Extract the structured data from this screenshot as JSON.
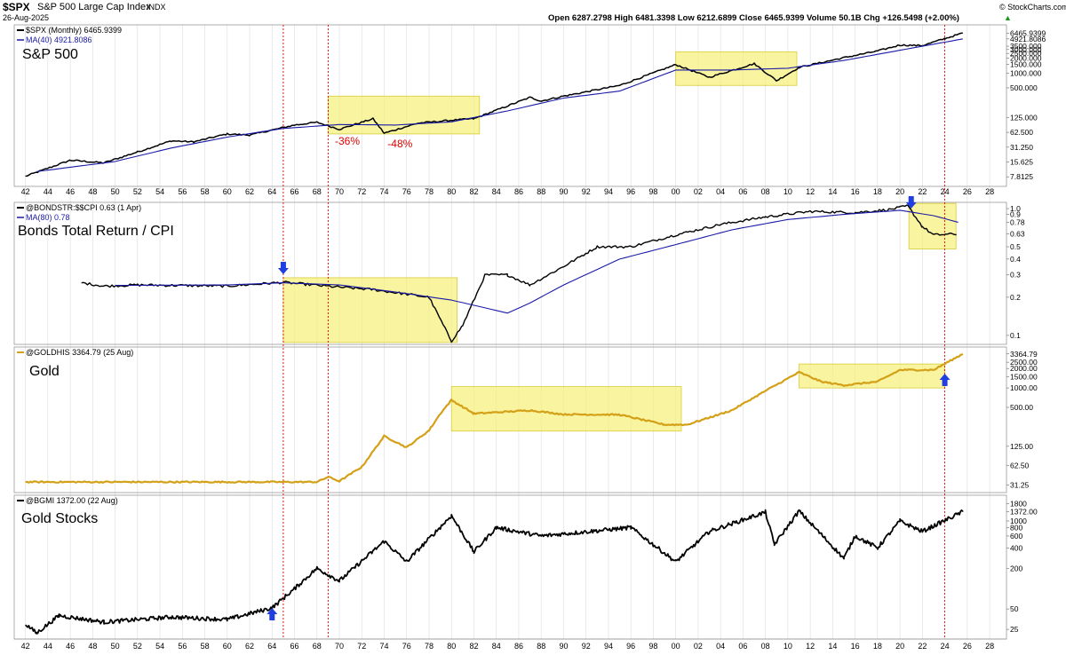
{
  "header": {
    "symbol": "$SPX",
    "name": "S&P 500 Large Cap Index",
    "exchange": "INDX",
    "date": "26-Aug-2025",
    "ohlc": "Open 6287.2798  High 6481.3398  Low 6212.6899  Close 6465.9399  Volume 50.1B  Chg +126.5498 (+2.00%)",
    "ohlc_arrow": "▲",
    "brand": "© StockCharts.com"
  },
  "chart_data": [
    {
      "type": "line",
      "scale": "log",
      "legend": "$SPX (Monthly) 6465.9399",
      "ma_legend": "MA(40) 4921.8086",
      "label": "S&P 500",
      "yticks": [
        "6465.9399",
        "4921.8086",
        "3500.000",
        "3000.000",
        "2500.000",
        "2000.000",
        "1500.000",
        "1000.000",
        "500.000",
        "125.000",
        "62.500",
        "31.250",
        "15.625",
        "7.8125"
      ],
      "annotations": [
        "-36%",
        "-48%"
      ],
      "highlight_ranges": [
        [
          1969.0,
          1982.5
        ],
        [
          2000.0,
          2010.8
        ]
      ],
      "series": [
        {
          "values": [
            [
              1942,
              8
            ],
            [
              1946,
              17
            ],
            [
              1949,
              15
            ],
            [
              1952,
              25
            ],
            [
              1955,
              42
            ],
            [
              1957,
              40
            ],
            [
              1960,
              58
            ],
            [
              1962,
              55
            ],
            [
              1966,
              88
            ],
            [
              1968,
              100
            ],
            [
              1970,
              72
            ],
            [
              1973,
              118
            ],
            [
              1974,
              60
            ],
            [
              1977,
              96
            ],
            [
              1980,
              110
            ],
            [
              1982,
              118
            ],
            [
              1987,
              320
            ],
            [
              1988,
              270
            ],
            [
              1990,
              340
            ],
            [
              1995,
              560
            ],
            [
              2000,
              1480
            ],
            [
              2003,
              820
            ],
            [
              2007,
              1550
            ],
            [
              2009,
              700
            ],
            [
              2011,
              1300
            ],
            [
              2015,
              2050
            ],
            [
              2018,
              2800
            ],
            [
              2020,
              3700
            ],
            [
              2022,
              3600
            ],
            [
              2024,
              5000
            ],
            [
              2025.6,
              6465.94
            ]
          ]
        },
        {
          "values": [
            [
              1943,
              10
            ],
            [
              1950,
              16
            ],
            [
              1955,
              30
            ],
            [
              1960,
              50
            ],
            [
              1965,
              75
            ],
            [
              1970,
              90
            ],
            [
              1975,
              88
            ],
            [
              1980,
              102
            ],
            [
              1985,
              170
            ],
            [
              1990,
              310
            ],
            [
              1995,
              430
            ],
            [
              2000,
              1150
            ],
            [
              2005,
              1150
            ],
            [
              2010,
              1250
            ],
            [
              2015,
              1800
            ],
            [
              2020,
              2900
            ],
            [
              2025.6,
              4921.81
            ]
          ]
        }
      ]
    },
    {
      "type": "line",
      "scale": "log",
      "legend": "@BONDSTR:$$CPI 0.63 (1 Apr)",
      "ma_legend": "MA(80) 0.78",
      "label": "Bonds Total Return / CPI",
      "yticks": [
        "1.0",
        "0.9",
        "0.78",
        "0.63",
        "0.5",
        "0.4",
        "0.3",
        "0.2",
        "0.1"
      ],
      "highlight_ranges": [
        [
          1965.0,
          1980.5
        ],
        [
          2020.8,
          2025.0
        ]
      ],
      "series": [
        {
          "values": [
            [
              1947,
              0.26
            ],
            [
              1949,
              0.245
            ],
            [
              1952,
              0.25
            ],
            [
              1960,
              0.245
            ],
            [
              1965,
              0.262
            ],
            [
              1970,
              0.24
            ],
            [
              1973,
              0.23
            ],
            [
              1978,
              0.2
            ],
            [
              1980,
              0.09
            ],
            [
              1981,
              0.12
            ],
            [
              1983,
              0.3
            ],
            [
              1985,
              0.3
            ],
            [
              1987,
              0.25
            ],
            [
              1990,
              0.35
            ],
            [
              1993,
              0.5
            ],
            [
              1996,
              0.5
            ],
            [
              2000,
              0.62
            ],
            [
              2004,
              0.75
            ],
            [
              2008,
              0.86
            ],
            [
              2012,
              0.95
            ],
            [
              2016,
              0.93
            ],
            [
              2019,
              0.98
            ],
            [
              2020.7,
              1.05
            ],
            [
              2022,
              0.72
            ],
            [
              2023,
              0.62
            ],
            [
              2025,
              0.63
            ]
          ]
        },
        {
          "values": [
            [
              1950,
              0.248
            ],
            [
              1960,
              0.25
            ],
            [
              1965,
              0.26
            ],
            [
              1970,
              0.25
            ],
            [
              1975,
              0.22
            ],
            [
              1980,
              0.19
            ],
            [
              1985,
              0.15
            ],
            [
              1987,
              0.18
            ],
            [
              1990,
              0.25
            ],
            [
              1995,
              0.4
            ],
            [
              2000,
              0.52
            ],
            [
              2005,
              0.68
            ],
            [
              2010,
              0.82
            ],
            [
              2015,
              0.9
            ],
            [
              2020,
              0.97
            ],
            [
              2023,
              0.88
            ],
            [
              2025.2,
              0.78
            ]
          ]
        }
      ]
    },
    {
      "type": "line",
      "scale": "log",
      "legend": "@GOLDHIS 3364.79 (25 Aug)",
      "label": "Gold",
      "yticks": [
        "3364.79",
        "2500.00",
        "2000.00",
        "1500.00",
        "1000.00",
        "500.00",
        "125.00",
        "62.50",
        "31.25"
      ],
      "highlight_ranges": [
        [
          1980.0,
          2000.5
        ],
        [
          2011.0,
          2024.0
        ]
      ],
      "series": [
        {
          "values": [
            [
              1942,
              35
            ],
            [
              1968,
              35
            ],
            [
              1969,
              42
            ],
            [
              1970,
              36
            ],
            [
              1972,
              60
            ],
            [
              1974,
              180
            ],
            [
              1976,
              120
            ],
            [
              1978,
              220
            ],
            [
              1979,
              400
            ],
            [
              1980,
              650
            ],
            [
              1982,
              400
            ],
            [
              1987,
              450
            ],
            [
              1990,
              390
            ],
            [
              1995,
              385
            ],
            [
              1999,
              270
            ],
            [
              2001,
              270
            ],
            [
              2005,
              450
            ],
            [
              2008,
              900
            ],
            [
              2011,
              1750
            ],
            [
              2013,
              1250
            ],
            [
              2015,
              1100
            ],
            [
              2018,
              1250
            ],
            [
              2020,
              1900
            ],
            [
              2023,
              1900
            ],
            [
              2025.6,
              3364.79
            ]
          ]
        }
      ]
    },
    {
      "type": "line",
      "scale": "log",
      "legend": "@BGMI 1372.00 (22 Aug)",
      "label": "Gold Stocks",
      "yticks": [
        "1800",
        "1372.00",
        "1000",
        "800",
        "600",
        "400",
        "200",
        "50",
        "25"
      ],
      "series": [
        {
          "values": [
            [
              1942,
              30
            ],
            [
              1943,
              22
            ],
            [
              1945,
              40
            ],
            [
              1949,
              32
            ],
            [
              1955,
              38
            ],
            [
              1960,
              35
            ],
            [
              1964,
              52
            ],
            [
              1966,
              100
            ],
            [
              1968,
              200
            ],
            [
              1970,
              130
            ],
            [
              1974,
              500
            ],
            [
              1976,
              250
            ],
            [
              1980,
              1200
            ],
            [
              1982,
              350
            ],
            [
              1984,
              800
            ],
            [
              1988,
              600
            ],
            [
              1996,
              800
            ],
            [
              2000,
              250
            ],
            [
              2003,
              700
            ],
            [
              2008,
              1350
            ],
            [
              2008.8,
              450
            ],
            [
              2011,
              1400
            ],
            [
              2015,
              280
            ],
            [
              2016,
              600
            ],
            [
              2018,
              400
            ],
            [
              2020,
              1000
            ],
            [
              2022,
              700
            ],
            [
              2025.6,
              1372.0
            ]
          ]
        }
      ]
    }
  ],
  "xaxis": {
    "ticks": [
      "42",
      "44",
      "46",
      "48",
      "50",
      "52",
      "54",
      "56",
      "58",
      "60",
      "62",
      "64",
      "66",
      "68",
      "70",
      "72",
      "74",
      "76",
      "78",
      "80",
      "82",
      "84",
      "86",
      "88",
      "90",
      "92",
      "94",
      "96",
      "98",
      "00",
      "02",
      "04",
      "06",
      "08",
      "10",
      "12",
      "14",
      "16",
      "18",
      "20",
      "22",
      "24",
      "26",
      "28"
    ]
  },
  "vertical_markers": [
    1965.0,
    1969.0,
    2024.0
  ],
  "blue_arrows": [
    {
      "panel": 1,
      "x": 1965.0,
      "dir": "down"
    },
    {
      "panel": 1,
      "x": 2021.0,
      "dir": "down"
    },
    {
      "panel": 2,
      "x": 2024.0,
      "dir": "up"
    },
    {
      "panel": 3,
      "x": 1964.0,
      "dir": "up"
    }
  ],
  "colors": {
    "price": "#000000",
    "ma": "#1a1aa8",
    "gold": "#d4a017",
    "highlight": "#f6f07a",
    "marker": "#e00000",
    "arrow": "#1f3fe0",
    "annotation": "#e00000",
    "grid": "#dcdcdc"
  }
}
